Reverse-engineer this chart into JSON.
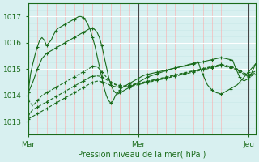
{
  "background_color": "#d8f0f0",
  "grid_color_major": "#ffffff",
  "grid_color_minor": "#c8e8e8",
  "line_color": "#1a6b1a",
  "marker_color": "#1a6b1a",
  "xlabel": "Pression niveau de la mer( hPa )",
  "ylim": [
    1012.5,
    1017.5
  ],
  "yticks": [
    1013,
    1014,
    1015,
    1016,
    1017
  ],
  "xtick_labels": [
    "Mar",
    "Mer",
    "Jeu"
  ],
  "xtick_positions": [
    0,
    48,
    96
  ],
  "vline_positions": [
    0,
    48,
    96
  ],
  "num_points": 100,
  "series": [
    [
      1014.1,
      1014.8,
      1015.2,
      1015.55,
      1015.85,
      1016.1,
      1016.2,
      1016.1,
      1015.9,
      1016.0,
      1016.1,
      1016.3,
      1016.45,
      1016.55,
      1016.6,
      1016.65,
      1016.7,
      1016.75,
      1016.8,
      1016.85,
      1016.9,
      1016.95,
      1017.0,
      1017.0,
      1016.95,
      1016.85,
      1016.7,
      1016.5,
      1016.2,
      1015.9,
      1015.5,
      1015.1,
      1014.7,
      1014.3,
      1014.0,
      1013.8,
      1013.7,
      1013.8,
      1014.0,
      1014.1,
      1014.2,
      1014.3,
      1014.35,
      1014.4,
      1014.45,
      1014.5,
      1014.55,
      1014.6,
      1014.65,
      1014.7,
      1014.75,
      1014.78,
      1014.8,
      1014.82,
      1014.84,
      1014.86,
      1014.88,
      1014.9,
      1014.92,
      1014.94,
      1014.96,
      1014.98,
      1015.0,
      1015.02,
      1015.04,
      1015.06,
      1015.08,
      1015.1,
      1015.12,
      1015.15,
      1015.18,
      1015.2,
      1015.22,
      1015.25,
      1015.28,
      1015.0,
      1014.8,
      1014.6,
      1014.4,
      1014.3,
      1014.2,
      1014.15,
      1014.1,
      1014.08,
      1014.05,
      1014.1,
      1014.15,
      1014.2,
      1014.25,
      1014.3,
      1014.35,
      1014.4,
      1014.5,
      1014.6,
      1014.7,
      1014.8,
      1014.9,
      1015.0,
      1015.1,
      1015.2
    ],
    [
      1014.1,
      1014.3,
      1014.5,
      1014.75,
      1015.0,
      1015.2,
      1015.4,
      1015.5,
      1015.6,
      1015.65,
      1015.7,
      1015.75,
      1015.8,
      1015.85,
      1015.9,
      1015.95,
      1016.0,
      1016.05,
      1016.1,
      1016.15,
      1016.2,
      1016.25,
      1016.3,
      1016.35,
      1016.4,
      1016.45,
      1016.5,
      1016.55,
      1016.55,
      1016.5,
      1016.4,
      1016.2,
      1015.9,
      1015.5,
      1015.1,
      1014.7,
      1014.4,
      1014.2,
      1014.1,
      1014.05,
      1014.1,
      1014.15,
      1014.2,
      1014.25,
      1014.3,
      1014.35,
      1014.4,
      1014.45,
      1014.5,
      1014.55,
      1014.6,
      1014.65,
      1014.7,
      1014.73,
      1014.76,
      1014.79,
      1014.82,
      1014.85,
      1014.88,
      1014.91,
      1014.94,
      1014.97,
      1015.0,
      1015.02,
      1015.04,
      1015.06,
      1015.08,
      1015.1,
      1015.12,
      1015.14,
      1015.16,
      1015.18,
      1015.2,
      1015.22,
      1015.24,
      1015.26,
      1015.28,
      1015.3,
      1015.32,
      1015.34,
      1015.36,
      1015.38,
      1015.4,
      1015.42,
      1015.44,
      1015.42,
      1015.4,
      1015.38,
      1015.36,
      1015.34,
      1015.1,
      1014.9,
      1014.7,
      1014.6,
      1014.55,
      1014.6,
      1014.65,
      1014.8,
      1015.0,
      1015.2
    ],
    [
      1013.85,
      1013.7,
      1013.6,
      1013.7,
      1013.8,
      1013.9,
      1014.0,
      1014.05,
      1014.1,
      1014.15,
      1014.2,
      1014.25,
      1014.3,
      1014.35,
      1014.4,
      1014.45,
      1014.5,
      1014.55,
      1014.6,
      1014.65,
      1014.7,
      1014.75,
      1014.8,
      1014.85,
      1014.9,
      1014.95,
      1015.0,
      1015.05,
      1015.1,
      1015.1,
      1015.1,
      1015.0,
      1014.9,
      1014.8,
      1014.7,
      1014.6,
      1014.5,
      1014.45,
      1014.4,
      1014.38,
      1014.36,
      1014.35,
      1014.35,
      1014.36,
      1014.37,
      1014.38,
      1014.4,
      1014.42,
      1014.44,
      1014.46,
      1014.48,
      1014.5,
      1014.52,
      1014.54,
      1014.56,
      1014.58,
      1014.6,
      1014.62,
      1014.64,
      1014.66,
      1014.68,
      1014.7,
      1014.72,
      1014.74,
      1014.76,
      1014.78,
      1014.8,
      1014.82,
      1014.84,
      1014.86,
      1014.88,
      1014.9,
      1014.92,
      1014.94,
      1014.96,
      1014.98,
      1015.0,
      1015.02,
      1015.04,
      1015.06,
      1015.08,
      1015.1,
      1015.12,
      1015.14,
      1015.16,
      1015.14,
      1015.12,
      1015.1,
      1015.08,
      1015.06,
      1015.04,
      1015.0,
      1014.95,
      1014.9,
      1014.85,
      1014.8,
      1014.78,
      1014.82,
      1014.88,
      1014.92
    ],
    [
      1013.2,
      1013.35,
      1013.45,
      1013.5,
      1013.55,
      1013.6,
      1013.65,
      1013.7,
      1013.75,
      1013.8,
      1013.85,
      1013.9,
      1013.95,
      1014.0,
      1014.05,
      1014.1,
      1014.15,
      1014.2,
      1014.25,
      1014.3,
      1014.35,
      1014.4,
      1014.45,
      1014.5,
      1014.55,
      1014.6,
      1014.65,
      1014.7,
      1014.72,
      1014.73,
      1014.74,
      1014.73,
      1014.7,
      1014.65,
      1014.6,
      1014.55,
      1014.5,
      1014.46,
      1014.42,
      1014.4,
      1014.38,
      1014.37,
      1014.36,
      1014.37,
      1014.38,
      1014.4,
      1014.42,
      1014.44,
      1014.46,
      1014.48,
      1014.5,
      1014.52,
      1014.54,
      1014.56,
      1014.58,
      1014.6,
      1014.62,
      1014.64,
      1014.66,
      1014.68,
      1014.7,
      1014.72,
      1014.74,
      1014.76,
      1014.78,
      1014.8,
      1014.82,
      1014.84,
      1014.86,
      1014.88,
      1014.9,
      1014.92,
      1014.94,
      1014.96,
      1014.98,
      1015.0,
      1015.02,
      1015.04,
      1015.06,
      1015.08,
      1015.1,
      1015.12,
      1015.14,
      1015.16,
      1015.18,
      1015.16,
      1015.14,
      1015.12,
      1015.1,
      1015.08,
      1015.04,
      1015.0,
      1014.95,
      1014.9,
      1014.85,
      1014.8,
      1014.75,
      1014.78,
      1014.82,
      1014.85
    ],
    [
      1013.1,
      1013.15,
      1013.2,
      1013.25,
      1013.3,
      1013.35,
      1013.4,
      1013.45,
      1013.5,
      1013.55,
      1013.6,
      1013.65,
      1013.7,
      1013.75,
      1013.8,
      1013.85,
      1013.9,
      1013.95,
      1014.0,
      1014.05,
      1014.1,
      1014.15,
      1014.2,
      1014.25,
      1014.3,
      1014.35,
      1014.4,
      1014.45,
      1014.5,
      1014.52,
      1014.54,
      1014.54,
      1014.52,
      1014.5,
      1014.46,
      1014.42,
      1014.38,
      1014.35,
      1014.33,
      1014.32,
      1014.31,
      1014.31,
      1014.32,
      1014.33,
      1014.34,
      1014.35,
      1014.37,
      1014.39,
      1014.41,
      1014.43,
      1014.45,
      1014.47,
      1014.49,
      1014.51,
      1014.53,
      1014.55,
      1014.57,
      1014.59,
      1014.61,
      1014.63,
      1014.65,
      1014.67,
      1014.69,
      1014.71,
      1014.73,
      1014.75,
      1014.77,
      1014.79,
      1014.81,
      1014.83,
      1014.85,
      1014.87,
      1014.89,
      1014.91,
      1014.93,
      1014.95,
      1014.97,
      1014.99,
      1015.01,
      1015.03,
      1015.05,
      1015.07,
      1015.09,
      1015.11,
      1015.13,
      1015.11,
      1015.09,
      1015.07,
      1015.05,
      1015.03,
      1015.0,
      1014.95,
      1014.9,
      1014.85,
      1014.8,
      1014.75,
      1014.7,
      1014.73,
      1014.78,
      1014.8
    ]
  ]
}
